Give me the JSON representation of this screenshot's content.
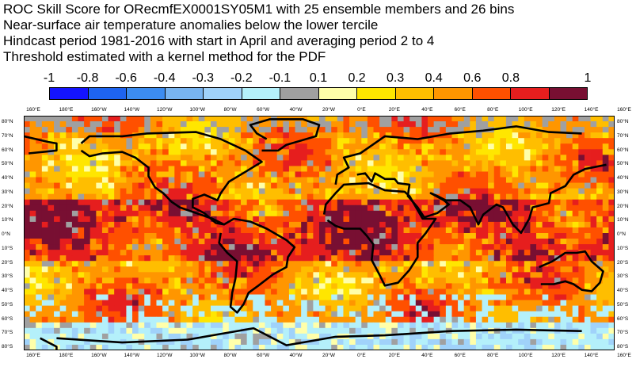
{
  "title_lines": [
    "ROC Skill Score for ORecmfEX0001SY05M1 with 25 ensemble members and 26 bins",
    "Near-surface air temperature anomalies below the lower tercile",
    "Hindcast period 1981-2016 with start in April and averaging period  2 to  4",
    "Threshold estimated with a kernel method for the PDF"
  ],
  "colorbar": {
    "labels": [
      "-1",
      "-0.8",
      "-0.6",
      "-0.4",
      "-0.3",
      "-0.2",
      "-0.1",
      "0.1",
      "0.2",
      "0.3",
      "0.4",
      "0.6",
      "0.8",
      "1"
    ],
    "colors": [
      "#1414ff",
      "#1e64f0",
      "#3c8cf0",
      "#78b4f0",
      "#a0d2fa",
      "#b4f0fa",
      "#a0a0a0",
      "#ffffaa",
      "#ffe600",
      "#ffbe00",
      "#ff9600",
      "#ff5000",
      "#e61e1e",
      "#780f32"
    ]
  },
  "map": {
    "lon_ticks": [
      "160°E",
      "180°E",
      "160°W",
      "140°W",
      "120°W",
      "100°W",
      "80°W",
      "60°W",
      "40°W",
      "20°W",
      "0°E",
      "20°E",
      "40°E",
      "60°E",
      "80°E",
      "100°E",
      "120°E",
      "140°E",
      "160°E"
    ],
    "lat_ticks": [
      "80°N",
      "70°N",
      "60°N",
      "50°N",
      "40°N",
      "30°N",
      "20°N",
      "10°N",
      "0°N",
      "10°S",
      "20°S",
      "30°S",
      "40°S",
      "50°S",
      "60°S",
      "70°S",
      "80°S"
    ]
  }
}
